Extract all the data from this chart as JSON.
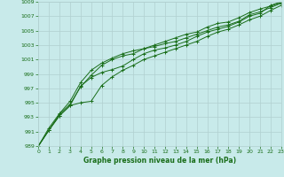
{
  "title": "Graphe pression niveau de la mer (hPa)",
  "bg_color": "#c8eaea",
  "grid_color": "#b0d0d0",
  "line_color": "#1a6e1a",
  "ylim": [
    989,
    1009
  ],
  "yticks": [
    989,
    991,
    993,
    995,
    997,
    999,
    1001,
    1003,
    1005,
    1007,
    1009
  ],
  "xlim": [
    0,
    23
  ],
  "xticks": [
    0,
    1,
    2,
    3,
    4,
    5,
    6,
    7,
    8,
    9,
    10,
    11,
    12,
    13,
    14,
    15,
    16,
    17,
    18,
    19,
    20,
    21,
    22,
    23
  ],
  "series": [
    [
      989.0,
      991.2,
      993.2,
      994.6,
      997.3,
      998.5,
      999.2,
      999.6,
      1000.1,
      1001.0,
      1001.8,
      1002.3,
      1002.6,
      1003.0,
      1003.5,
      1004.2,
      1004.8,
      1005.2,
      1005.6,
      1006.2,
      1007.0,
      1007.4,
      1008.5,
      1009.0
    ],
    [
      989.0,
      991.2,
      993.2,
      994.6,
      995.0,
      995.2,
      997.4,
      998.6,
      999.5,
      1000.2,
      1001.0,
      1001.5,
      1002.0,
      1002.5,
      1003.0,
      1003.5,
      1004.2,
      1004.8,
      1005.2,
      1005.8,
      1006.5,
      1007.0,
      1007.8,
      1008.5
    ],
    [
      989.0,
      991.2,
      993.4,
      994.8,
      997.2,
      998.8,
      1000.2,
      1001.0,
      1001.5,
      1001.8,
      1002.5,
      1002.8,
      1003.2,
      1003.5,
      1004.0,
      1004.5,
      1005.0,
      1005.5,
      1005.8,
      1006.3,
      1007.2,
      1007.6,
      1008.2,
      1008.8
    ],
    [
      989.0,
      991.5,
      993.5,
      995.2,
      997.8,
      999.5,
      1000.5,
      1001.2,
      1001.8,
      1002.2,
      1002.5,
      1003.0,
      1003.5,
      1004.0,
      1004.5,
      1004.8,
      1005.5,
      1006.0,
      1006.2,
      1006.8,
      1007.5,
      1008.0,
      1008.4,
      1008.9
    ]
  ]
}
